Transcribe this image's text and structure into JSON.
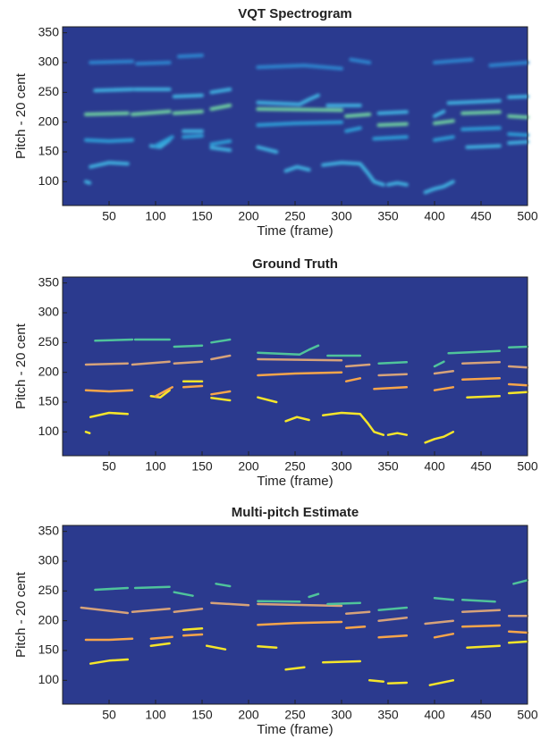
{
  "chart_data": [
    {
      "type": "line",
      "title": "VQT Spectrogram",
      "xlabel": "Time (frame)",
      "ylabel": "Pitch - 20 cent",
      "xlim": [
        0,
        500
      ],
      "ylim": [
        60,
        360
      ],
      "xticks": [
        50,
        100,
        150,
        200,
        250,
        300,
        350,
        400,
        450,
        500
      ],
      "yticks": [
        100,
        150,
        200,
        250,
        300,
        350
      ],
      "background": "#2a3a8f",
      "blur": true,
      "series": [
        {
          "color": "#3fb0e0",
          "x": [
            25,
            29,
            null,
            30,
            50,
            70,
            null,
            95,
            105,
            115,
            null,
            130,
            150,
            null,
            160,
            180,
            null,
            210,
            230,
            null,
            240,
            252,
            265,
            null,
            280,
            300,
            320,
            328,
            335,
            345,
            null,
            350,
            360,
            370,
            null,
            390,
            400,
            410,
            420,
            null,
            435,
            470,
            null,
            480,
            500
          ],
          "values": [
            100,
            98,
            null,
            125,
            132,
            130,
            null,
            160,
            158,
            170,
            null,
            185,
            185,
            null,
            157,
            153,
            null,
            158,
            150,
            null,
            118,
            125,
            120,
            null,
            128,
            132,
            130,
            115,
            100,
            95,
            null,
            95,
            98,
            95,
            null,
            82,
            88,
            92,
            100,
            null,
            158,
            160,
            null,
            165,
            167
          ]
        },
        {
          "color": "#2f9fd8",
          "x": [
            25,
            50,
            75,
            null,
            100,
            118,
            null,
            130,
            150,
            null,
            160,
            180,
            null,
            210,
            250,
            300,
            null,
            305,
            320,
            null,
            335,
            370,
            null,
            400,
            420,
            null,
            430,
            470,
            null,
            480,
            500
          ],
          "values": [
            170,
            168,
            170,
            null,
            160,
            175,
            null,
            175,
            177,
            null,
            163,
            168,
            null,
            195,
            198,
            200,
            null,
            185,
            190,
            null,
            172,
            175,
            null,
            170,
            175,
            null,
            188,
            190,
            null,
            180,
            178
          ]
        },
        {
          "color": "#6fd0a0",
          "x": [
            25,
            70,
            null,
            75,
            115,
            null,
            120,
            150,
            null,
            160,
            180,
            null,
            210,
            300,
            null,
            305,
            330,
            null,
            340,
            370,
            null,
            400,
            420,
            null,
            430,
            470,
            null,
            480,
            500
          ],
          "values": [
            213,
            215,
            null,
            213,
            218,
            null,
            215,
            218,
            null,
            222,
            228,
            null,
            222,
            220,
            null,
            210,
            213,
            null,
            195,
            197,
            null,
            198,
            202,
            null,
            215,
            217,
            null,
            210,
            208
          ]
        },
        {
          "color": "#3fb0e0",
          "x": [
            35,
            75,
            null,
            78,
            115,
            null,
            120,
            150,
            null,
            160,
            180,
            null,
            210,
            255,
            265,
            275,
            null,
            285,
            320,
            null,
            340,
            370,
            null,
            400,
            410,
            null,
            415,
            470,
            null,
            480,
            500
          ],
          "values": [
            253,
            255,
            null,
            255,
            255,
            null,
            243,
            245,
            null,
            250,
            255,
            null,
            233,
            230,
            238,
            245,
            null,
            228,
            228,
            null,
            215,
            217,
            null,
            210,
            218,
            null,
            232,
            236,
            null,
            242,
            243
          ]
        },
        {
          "color": "#2e86d0",
          "x": [
            30,
            75,
            null,
            80,
            115,
            null,
            125,
            150,
            null,
            210,
            260,
            300,
            null,
            310,
            330,
            null,
            400,
            440,
            null,
            460,
            500
          ],
          "values": [
            300,
            302,
            null,
            298,
            300,
            null,
            310,
            312,
            null,
            292,
            295,
            290,
            null,
            305,
            300,
            null,
            300,
            305,
            null,
            295,
            300
          ]
        }
      ]
    },
    {
      "type": "line",
      "title": "Ground Truth",
      "xlabel": "Time (frame)",
      "ylabel": "Pitch - 20 cent",
      "xlim": [
        0,
        500
      ],
      "ylim": [
        60,
        360
      ],
      "xticks": [
        50,
        100,
        150,
        200,
        250,
        300,
        350,
        400,
        450,
        500
      ],
      "yticks": [
        100,
        150,
        200,
        250,
        300,
        350
      ],
      "background": "#2b3a8e",
      "blur": false,
      "series": [
        {
          "color": "#f5e52a",
          "x": [
            25,
            29,
            null,
            30,
            50,
            70,
            null,
            95,
            105,
            115,
            null,
            130,
            150,
            null,
            160,
            180,
            null,
            210,
            230,
            null,
            240,
            252,
            265,
            null,
            280,
            300,
            320,
            328,
            335,
            345,
            null,
            350,
            360,
            370,
            null,
            390,
            400,
            410,
            420,
            null,
            435,
            470,
            null,
            480,
            500
          ],
          "values": [
            100,
            98,
            null,
            125,
            132,
            130,
            null,
            160,
            158,
            170,
            null,
            185,
            185,
            null,
            157,
            153,
            null,
            158,
            150,
            null,
            118,
            125,
            120,
            null,
            128,
            132,
            130,
            115,
            100,
            95,
            null,
            95,
            98,
            95,
            null,
            82,
            88,
            92,
            100,
            null,
            158,
            160,
            null,
            165,
            167
          ]
        },
        {
          "color": "#f7a54a",
          "x": [
            25,
            50,
            75,
            null,
            100,
            118,
            null,
            130,
            150,
            null,
            160,
            180,
            null,
            210,
            250,
            300,
            null,
            305,
            320,
            null,
            335,
            370,
            null,
            400,
            420,
            null,
            430,
            470,
            null,
            480,
            500
          ],
          "values": [
            170,
            168,
            170,
            null,
            160,
            175,
            null,
            175,
            177,
            null,
            163,
            168,
            null,
            195,
            198,
            200,
            null,
            185,
            190,
            null,
            172,
            175,
            null,
            170,
            175,
            null,
            188,
            190,
            null,
            180,
            178
          ]
        },
        {
          "color": "#d6a27a",
          "x": [
            25,
            70,
            null,
            75,
            115,
            null,
            120,
            150,
            null,
            160,
            180,
            null,
            210,
            300,
            null,
            305,
            330,
            null,
            340,
            370,
            null,
            400,
            420,
            null,
            430,
            470,
            null,
            480,
            500
          ],
          "values": [
            213,
            215,
            null,
            213,
            218,
            null,
            215,
            218,
            null,
            222,
            228,
            null,
            222,
            220,
            null,
            210,
            213,
            null,
            195,
            197,
            null,
            198,
            202,
            null,
            215,
            217,
            null,
            210,
            208
          ]
        },
        {
          "color": "#4fc39b",
          "x": [
            35,
            75,
            null,
            78,
            115,
            null,
            120,
            150,
            null,
            160,
            180,
            null,
            210,
            255,
            265,
            275,
            null,
            285,
            320,
            null,
            340,
            370,
            null,
            400,
            410,
            null,
            415,
            470,
            null,
            480,
            500
          ],
          "values": [
            253,
            255,
            null,
            255,
            255,
            null,
            243,
            245,
            null,
            250,
            255,
            null,
            233,
            230,
            238,
            245,
            null,
            228,
            228,
            null,
            215,
            217,
            null,
            210,
            218,
            null,
            232,
            236,
            null,
            242,
            243
          ]
        }
      ]
    },
    {
      "type": "line",
      "title": "Multi-pitch Estimate",
      "xlabel": "Time (frame)",
      "ylabel": "Pitch - 20 cent",
      "xlim": [
        0,
        500
      ],
      "ylim": [
        60,
        360
      ],
      "xticks": [
        50,
        100,
        150,
        200,
        250,
        300,
        350,
        400,
        450,
        500
      ],
      "yticks": [
        100,
        150,
        200,
        250,
        300,
        350
      ],
      "background": "#2b3a8e",
      "blur": false,
      "series": [
        {
          "color": "#f5e52a",
          "x": [
            30,
            50,
            70,
            null,
            95,
            115,
            null,
            130,
            150,
            null,
            155,
            175,
            null,
            210,
            230,
            null,
            240,
            260,
            null,
            280,
            320,
            null,
            330,
            345,
            null,
            350,
            370,
            null,
            395,
            420,
            null,
            435,
            470,
            null,
            480,
            500
          ],
          "values": [
            128,
            133,
            135,
            null,
            158,
            162,
            null,
            185,
            187,
            null,
            158,
            152,
            null,
            157,
            155,
            null,
            118,
            122,
            null,
            130,
            132,
            null,
            100,
            98,
            null,
            95,
            96,
            null,
            92,
            100,
            null,
            155,
            158,
            null,
            163,
            165
          ]
        },
        {
          "color": "#f7a54a",
          "x": [
            25,
            50,
            75,
            null,
            95,
            118,
            null,
            130,
            150,
            null,
            210,
            250,
            300,
            null,
            305,
            325,
            null,
            340,
            370,
            null,
            400,
            420,
            null,
            430,
            470,
            null,
            480,
            500
          ],
          "values": [
            168,
            168,
            170,
            null,
            170,
            173,
            null,
            175,
            177,
            null,
            193,
            196,
            198,
            null,
            188,
            190,
            null,
            172,
            175,
            null,
            172,
            178,
            null,
            190,
            192,
            null,
            182,
            180
          ]
        },
        {
          "color": "#d6a27a",
          "x": [
            20,
            70,
            null,
            75,
            115,
            null,
            120,
            150,
            null,
            160,
            200,
            null,
            210,
            300,
            null,
            305,
            330,
            null,
            340,
            370,
            null,
            390,
            420,
            null,
            430,
            470,
            null,
            480,
            500
          ],
          "values": [
            222,
            213,
            null,
            215,
            220,
            null,
            215,
            220,
            null,
            230,
            226,
            null,
            228,
            225,
            null,
            212,
            215,
            null,
            200,
            205,
            null,
            195,
            200,
            null,
            215,
            218,
            null,
            208,
            208
          ]
        },
        {
          "color": "#4fc39b",
          "x": [
            35,
            70,
            null,
            78,
            115,
            null,
            120,
            140,
            null,
            165,
            180,
            null,
            210,
            255,
            null,
            265,
            275,
            null,
            285,
            320,
            null,
            340,
            370,
            null,
            400,
            420,
            null,
            430,
            465,
            null,
            485,
            500
          ],
          "values": [
            252,
            255,
            null,
            255,
            257,
            null,
            248,
            242,
            null,
            262,
            258,
            null,
            233,
            232,
            null,
            240,
            245,
            null,
            228,
            230,
            null,
            218,
            222,
            null,
            238,
            235,
            null,
            235,
            232,
            null,
            262,
            268
          ]
        }
      ]
    }
  ]
}
